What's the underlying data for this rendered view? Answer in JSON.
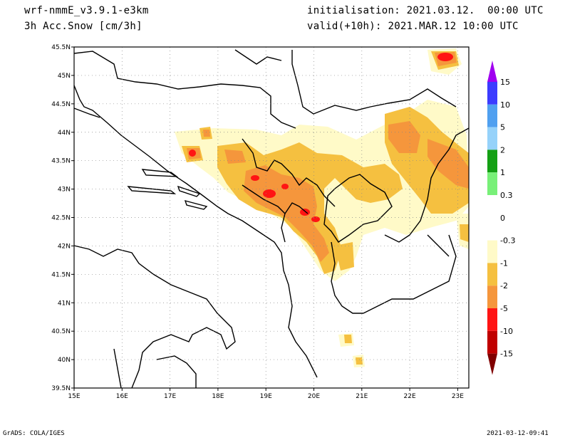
{
  "header": {
    "model": "wrf-nmmE_v3.9.1-e3km",
    "variable": "3h Acc.Snow [cm/3h]",
    "initialisation": "initialisation: 2021.03.12.  00:00 UTC",
    "valid": "valid(+10h): 2021.MAR.12 10:00 UTC"
  },
  "axes": {
    "lon_labels": [
      "15E",
      "16E",
      "17E",
      "18E",
      "19E",
      "20E",
      "21E",
      "22E",
      "23E"
    ],
    "lat_labels": [
      "45.5N",
      "45N",
      "44.5N",
      "44N",
      "43.5N",
      "43N",
      "42.5N",
      "42N",
      "41.5N",
      "41N",
      "40.5N",
      "40N",
      "39.5N"
    ]
  },
  "colorbar": {
    "labels": [
      "15",
      "10",
      "5",
      "2",
      "1",
      "0.3",
      "0",
      "-0.3",
      "-1",
      "-2",
      "-5",
      "-10",
      "-15"
    ],
    "colors": [
      "#a000f0",
      "#3c3cff",
      "#50a0f0",
      "#96d2fa",
      "#14a014",
      "#78f078",
      "#ffffff",
      "#ffffff",
      "#fffac8",
      "#f5c040",
      "#f5963c",
      "#ff1414",
      "#c00000",
      "#800000"
    ]
  },
  "footer": {
    "left": "GrADS: COLA/IGES",
    "right": "2021-03-12-09:41"
  }
}
